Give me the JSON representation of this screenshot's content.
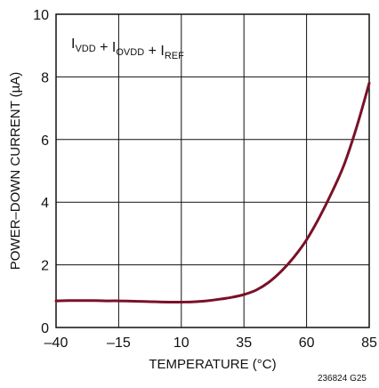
{
  "chart_data": {
    "type": "line",
    "title": "",
    "xlabel": "TEMPERATURE (°C)",
    "ylabel": "POWER–DOWN CURRENT (µA)",
    "xlim": [
      -40,
      85
    ],
    "ylim": [
      0,
      10
    ],
    "x_ticks": [
      -40,
      -15,
      10,
      35,
      60,
      85
    ],
    "x_tick_labels": [
      "–40",
      "–15",
      "10",
      "35",
      "60",
      "85"
    ],
    "y_ticks": [
      0,
      2,
      4,
      6,
      8,
      10
    ],
    "y_tick_labels": [
      "0",
      "2",
      "4",
      "6",
      "8",
      "10"
    ],
    "grid": true,
    "line_color": "#7a1128",
    "annotation": {
      "parts": [
        {
          "base": "I",
          "sub": "VDD"
        },
        {
          "sep": " + "
        },
        {
          "base": "I",
          "sub": "OVDD"
        },
        {
          "sep": " + "
        },
        {
          "base": "I",
          "sub": "REF"
        }
      ]
    },
    "series": [
      {
        "name": "",
        "x": [
          -40,
          -35,
          -30,
          -25,
          -20,
          -15,
          -10,
          -5,
          0,
          5,
          10,
          15,
          20,
          25,
          30,
          35,
          40,
          45,
          50,
          55,
          60,
          65,
          70,
          75,
          80,
          85
        ],
        "y": [
          0.85,
          0.86,
          0.86,
          0.86,
          0.85,
          0.85,
          0.84,
          0.83,
          0.82,
          0.81,
          0.81,
          0.82,
          0.85,
          0.9,
          0.96,
          1.05,
          1.2,
          1.45,
          1.8,
          2.25,
          2.8,
          3.5,
          4.3,
          5.2,
          6.4,
          7.8
        ]
      }
    ],
    "figure_id": "236824 G25"
  }
}
